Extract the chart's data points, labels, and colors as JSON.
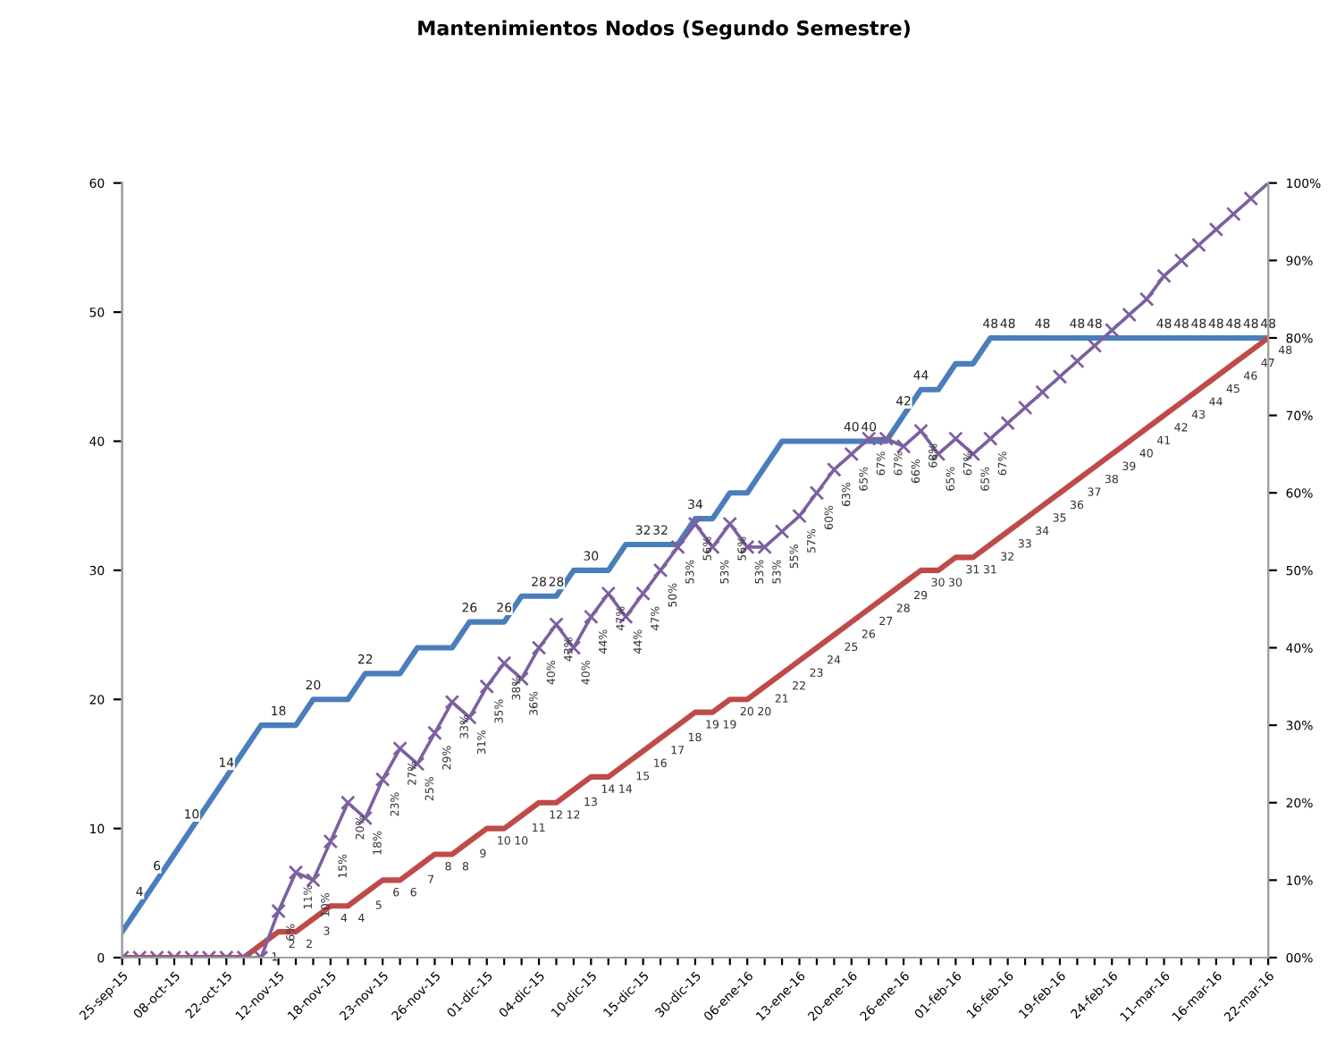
{
  "chart_data": {
    "type": "line",
    "title": "Mantenimientos Nodos (Segundo Semestre)",
    "categories": [
      "25-sep-15",
      null,
      null,
      "08-oct-15",
      null,
      null,
      "22-oct-15",
      null,
      null,
      "12-nov-15",
      null,
      null,
      "18-nov-15",
      null,
      null,
      "23-nov-15",
      null,
      null,
      "26-nov-15",
      null,
      null,
      "01-dic-15",
      null,
      null,
      "04-dic-15",
      null,
      null,
      "10-dic-15",
      null,
      null,
      "15-dic-15",
      null,
      null,
      "30-dic-15",
      null,
      null,
      "06-ene-16",
      null,
      null,
      "13-ene-16",
      null,
      null,
      "20-ene-16",
      null,
      null,
      "26-ene-16",
      null,
      null,
      "01-feb-16",
      null,
      null,
      "16-feb-16",
      null,
      null,
      "19-feb-16",
      null,
      null,
      "24-feb-16",
      null,
      null,
      "11-mar-16",
      null,
      null,
      "16-mar-16",
      null,
      null,
      "22-mar-16"
    ],
    "series": [
      {
        "color": "#4a7ebb",
        "marker": "none",
        "values": [
          2,
          4,
          6,
          8,
          10,
          12,
          14,
          16,
          18,
          18,
          18,
          20,
          20,
          20,
          22,
          22,
          22,
          24,
          24,
          24,
          26,
          26,
          26,
          28,
          28,
          28,
          30,
          30,
          30,
          32,
          32,
          32,
          32,
          34,
          34,
          36,
          36,
          38,
          40,
          40,
          40,
          40,
          40,
          40,
          40,
          42,
          44,
          44,
          46,
          46,
          48,
          48,
          48,
          48,
          48,
          48,
          48,
          48,
          48,
          48,
          48,
          48,
          48,
          48,
          48,
          48,
          48
        ],
        "value_labels": [
          null,
          "4",
          "6",
          null,
          "10",
          null,
          "14",
          null,
          null,
          "18",
          null,
          "20",
          null,
          null,
          "22",
          null,
          null,
          null,
          null,
          null,
          "26",
          null,
          "26",
          null,
          "28",
          "28",
          null,
          "30",
          null,
          null,
          "32",
          "32",
          null,
          "34",
          null,
          null,
          null,
          null,
          null,
          null,
          null,
          null,
          "40",
          "40",
          null,
          "42",
          "44",
          null,
          null,
          null,
          "48",
          "48",
          null,
          "48",
          null,
          "48",
          "48",
          null,
          null,
          null,
          "48",
          "48",
          "48",
          "48",
          "48",
          "48",
          "48"
        ]
      },
      {
        "color": "#be4b48",
        "marker": "none",
        "values": [
          0,
          0,
          0,
          0,
          0,
          0,
          0,
          0,
          1,
          2,
          2,
          3,
          4,
          4,
          5,
          6,
          6,
          7,
          8,
          8,
          9,
          10,
          10,
          11,
          12,
          12,
          13,
          14,
          14,
          15,
          16,
          17,
          18,
          19,
          19,
          20,
          20,
          21,
          22,
          23,
          24,
          25,
          26,
          27,
          28,
          29,
          30,
          30,
          31,
          31,
          32,
          33,
          34,
          35,
          36,
          37,
          38,
          39,
          40,
          41,
          42,
          43,
          44,
          45,
          46,
          47,
          48
        ],
        "value_labels": [
          null,
          null,
          null,
          null,
          null,
          null,
          null,
          null,
          "1",
          "2",
          "2",
          "3",
          "4",
          "4",
          "5",
          "6",
          "6",
          "7",
          "8",
          "8",
          "9",
          "10",
          "10",
          "11",
          "12",
          "12",
          "13",
          "14",
          "14",
          "15",
          "16",
          "17",
          "18",
          "19",
          "19",
          "20",
          "20",
          "21",
          "22",
          "23",
          "24",
          "25",
          "26",
          "27",
          "28",
          "29",
          "30",
          "30",
          "31",
          "31",
          "32",
          "33",
          "34",
          "35",
          "36",
          "37",
          "38",
          "39",
          "40",
          "41",
          "42",
          "43",
          "44",
          "45",
          "46",
          "47",
          "48"
        ]
      },
      {
        "color": "#7d60a0",
        "marker": "cross",
        "axis": "y2",
        "values": [
          0,
          0,
          0,
          0,
          0,
          0,
          0,
          0,
          0,
          6,
          11,
          10,
          15,
          20,
          18,
          23,
          27,
          25,
          29,
          33,
          31,
          35,
          38,
          36,
          40,
          43,
          40,
          44,
          47,
          44,
          47,
          50,
          53,
          56,
          53,
          56,
          53,
          53,
          55,
          57,
          60,
          63,
          65,
          67,
          67,
          66,
          68,
          65,
          67,
          65,
          67,
          69,
          71,
          73,
          75,
          77,
          79,
          81,
          83,
          85,
          88,
          90,
          92,
          94,
          96,
          98,
          100
        ],
        "value_labels": [
          null,
          null,
          null,
          null,
          null,
          null,
          null,
          null,
          null,
          "6%",
          "11%",
          "10%",
          "15%",
          "20%",
          "18%",
          "23%",
          "27%",
          "25%",
          "29%",
          "33%",
          "31%",
          "35%",
          "38%",
          "36%",
          "40%",
          "43%",
          "40%",
          "44%",
          "47%",
          "44%",
          "47%",
          "50%",
          "53%",
          "56%",
          "53%",
          "56%",
          "53%",
          "53%",
          "55%",
          "57%",
          "60%",
          "63%",
          "65%",
          "67%",
          "67%",
          "66%",
          "68%",
          "65%",
          "67%",
          "65%",
          "67%",
          null,
          null,
          null,
          null,
          null,
          null,
          null,
          null,
          null,
          null,
          null,
          null,
          null,
          null,
          null,
          null
        ]
      }
    ],
    "ylim": [
      0,
      60
    ],
    "yticks": [
      0,
      10,
      20,
      30,
      40,
      50,
      60
    ],
    "y2lim": [
      0,
      100
    ],
    "y2ticks": [
      {
        "value": 0,
        "label": "00%"
      },
      {
        "value": 10,
        "label": "10%"
      },
      {
        "value": 20,
        "label": "20%"
      },
      {
        "value": 30,
        "label": "30%"
      },
      {
        "value": 40,
        "label": "40%"
      },
      {
        "value": 50,
        "label": "50%"
      },
      {
        "value": 60,
        "label": "60%"
      },
      {
        "value": 70,
        "label": "70%"
      },
      {
        "value": 80,
        "label": "80%"
      },
      {
        "value": 90,
        "label": "90%"
      },
      {
        "value": 100,
        "label": "100%"
      }
    ],
    "grid": false,
    "legend": false,
    "line_style": "solid"
  }
}
